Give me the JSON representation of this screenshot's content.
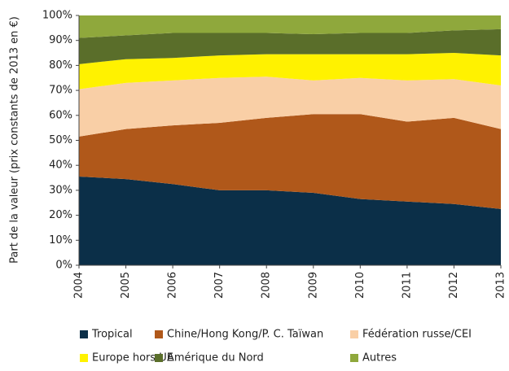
{
  "chart_data": {
    "type": "area_stacked",
    "y_label": "Part de la valeur (prix constants de 2013 en €)",
    "categories": [
      "2004",
      "2005",
      "2006",
      "2007",
      "2008",
      "2009",
      "2010",
      "2011",
      "2012",
      "2013"
    ],
    "series": [
      {
        "name": "Tropical",
        "color": "#0b2f48",
        "values": [
          35.5,
          34.5,
          32.5,
          30,
          30,
          29,
          26.5,
          25.5,
          24.5,
          22.5
        ]
      },
      {
        "name": "Chine/Hong Kong/P. C. Taïwan",
        "color": "#b0581a",
        "values": [
          16,
          20,
          23.5,
          27,
          29,
          31.5,
          34,
          32,
          34.5,
          32
        ]
      },
      {
        "name": "Fédération russe/CEI",
        "color": "#f9cfa6",
        "values": [
          19,
          18.5,
          18,
          18,
          16.5,
          13.5,
          14.5,
          16.5,
          15.5,
          17.5
        ]
      },
      {
        "name": "Europe hors UE",
        "color": "#fff200",
        "values": [
          10,
          9.5,
          9,
          9,
          9,
          10.5,
          9.5,
          10.5,
          10.5,
          12
        ]
      },
      {
        "name": "Amérique du Nord",
        "color": "#5a6e2a",
        "values": [
          10.5,
          9.5,
          10,
          9,
          8.5,
          8,
          8.5,
          8.5,
          9,
          10.5
        ]
      },
      {
        "name": "Autres",
        "color": "#8fa83c",
        "values": [
          9,
          8,
          7,
          7,
          7,
          7.5,
          7,
          7,
          6,
          5.5
        ]
      }
    ],
    "ylim": [
      0,
      100
    ],
    "yticks": [
      {
        "value": 0,
        "label": "0%"
      },
      {
        "value": 10,
        "label": "10%"
      },
      {
        "value": 20,
        "label": "20%"
      },
      {
        "value": 30,
        "label": "30%"
      },
      {
        "value": 40,
        "label": "40%"
      },
      {
        "value": 50,
        "label": "50%"
      },
      {
        "value": 60,
        "label": "60%"
      },
      {
        "value": 70,
        "label": "70%"
      },
      {
        "value": 80,
        "label": "80%"
      },
      {
        "value": 90,
        "label": "90%"
      },
      {
        "value": 100,
        "label": "100%"
      }
    ],
    "grid": false
  }
}
